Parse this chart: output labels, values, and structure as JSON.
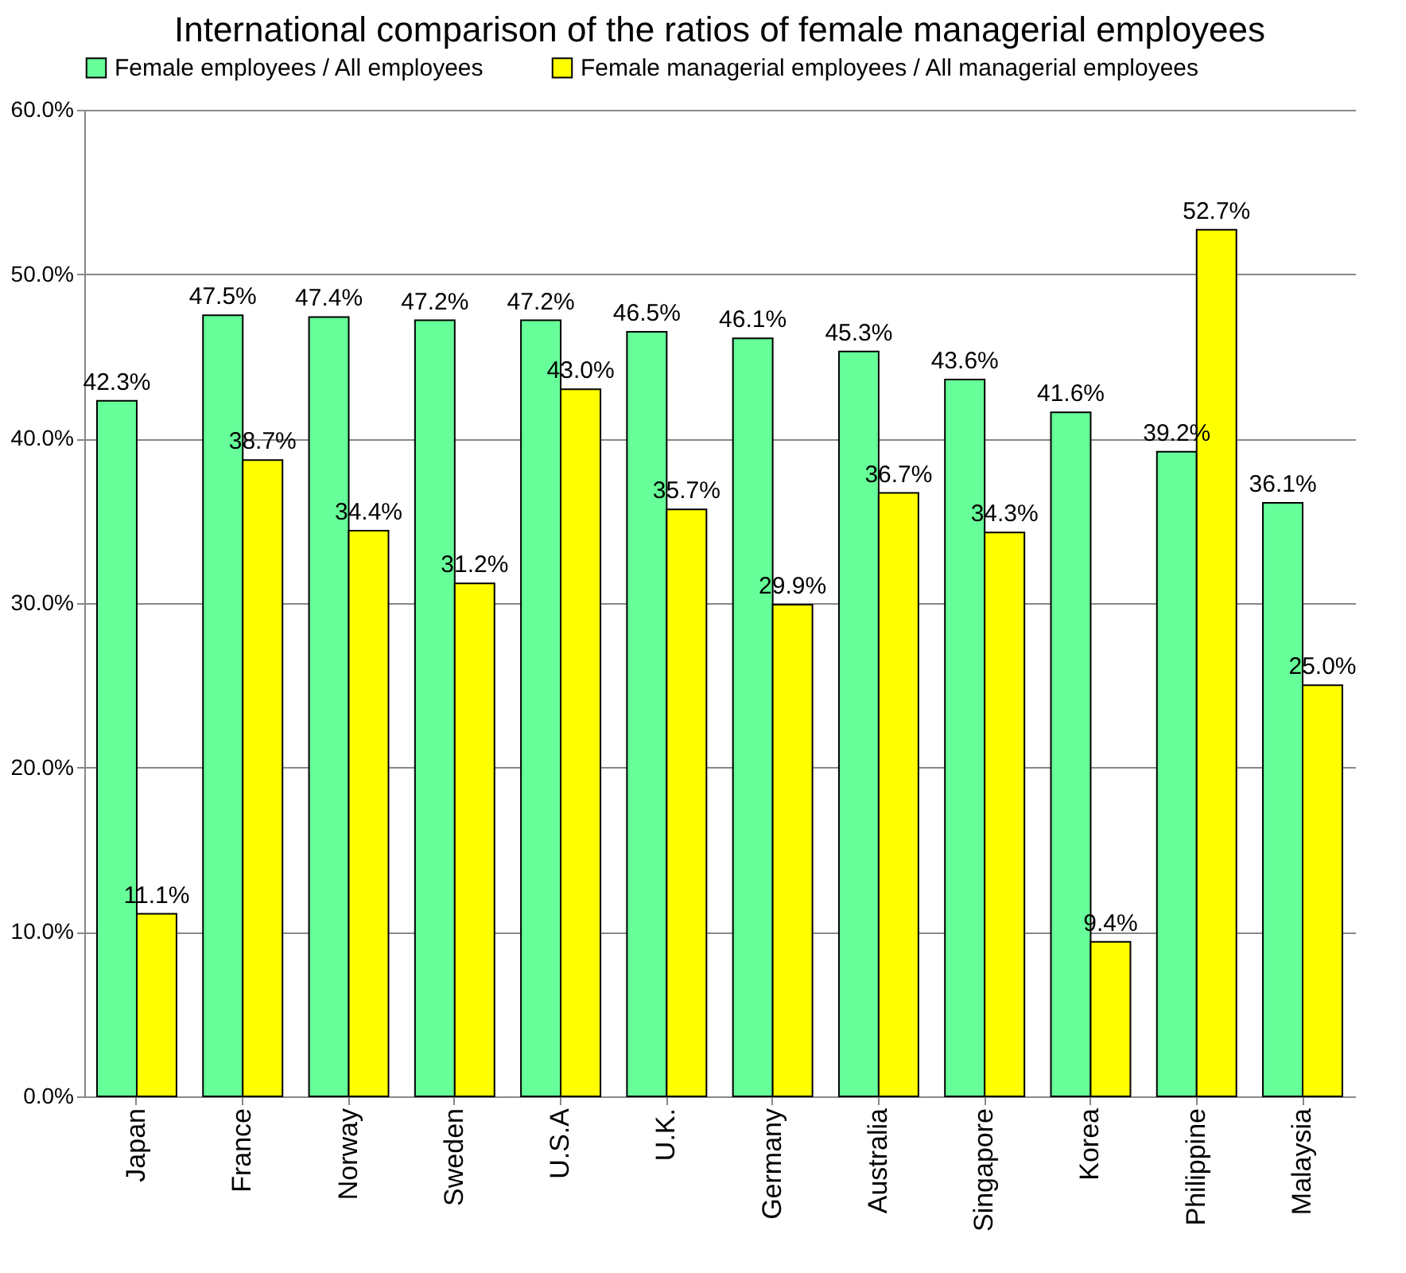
{
  "chart_data": {
    "type": "bar",
    "title": "International comparison of the ratios of female managerial employees",
    "categories": [
      "Japan",
      "France",
      "Norway",
      "Sweden",
      "U.S.A",
      "U.K.",
      "Germany",
      "Australia",
      "Singapore",
      "Korea",
      "Philippine",
      "Malaysia"
    ],
    "series": [
      {
        "name": "Female employees / All employees",
        "color": "#66ff99",
        "values": [
          42.3,
          47.5,
          47.4,
          47.2,
          47.2,
          46.5,
          46.1,
          45.3,
          43.6,
          41.6,
          39.2,
          36.1
        ],
        "value_labels": [
          "42.3%",
          "47.5%",
          "47.4%",
          "47.2%",
          "47.2%",
          "46.5%",
          "46.1%",
          "45.3%",
          "43.6%",
          "41.6%",
          "39.2%",
          "36.1%"
        ]
      },
      {
        "name": "Female managerial employees / All managerial employees",
        "color": "#ffff00",
        "values": [
          11.1,
          38.7,
          34.4,
          31.2,
          43.0,
          35.7,
          29.9,
          36.7,
          34.3,
          9.4,
          52.7,
          25.0
        ],
        "value_labels": [
          "11.1%",
          "38.7%",
          "34.4%",
          "31.2%",
          "43.0%",
          "35.7%",
          "29.9%",
          "36.7%",
          "34.3%",
          "9.4%",
          "52.7%",
          "25.0%"
        ]
      }
    ],
    "ylim": [
      0,
      60
    ],
    "yticks": [
      {
        "value": 0,
        "label": "0.0%"
      },
      {
        "value": 10,
        "label": "10.0%"
      },
      {
        "value": 20,
        "label": "20.0%"
      },
      {
        "value": 30,
        "label": "30.0%"
      },
      {
        "value": 40,
        "label": "40.0%"
      },
      {
        "value": 50,
        "label": "50.0%"
      },
      {
        "value": 60,
        "label": "60.0%"
      }
    ],
    "grid": "y",
    "legend": "top"
  }
}
